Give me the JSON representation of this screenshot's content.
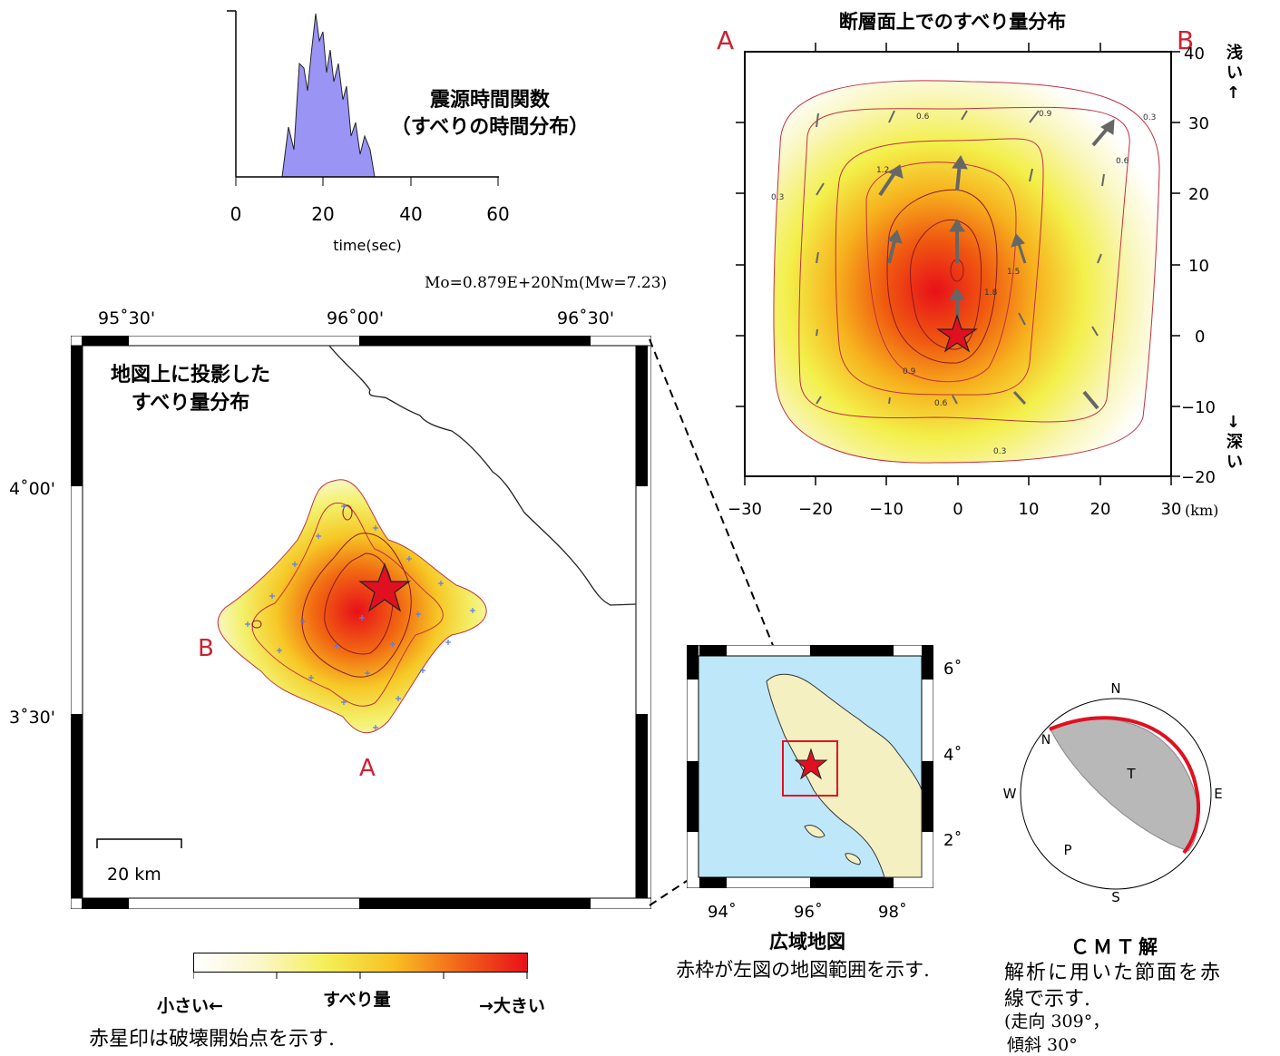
{
  "stf": {
    "title_line1": "震源時間関数",
    "title_line2": "（すべりの時間分布）",
    "xlabel": "time(sec)",
    "xticks": [
      "0",
      "20",
      "40",
      "60"
    ],
    "fill_color": "#9a94f4"
  },
  "moment": "Mo=0.879E+20Nm(Mw=7.23)",
  "fault": {
    "title": "断層面上でのすべり量分布",
    "label_a": "A",
    "label_b": "B",
    "shallow": "浅い↑",
    "deep": "↓深い",
    "km_unit": "(km)",
    "xticks": [
      "−30",
      "−20",
      "−10",
      "0",
      "10",
      "20",
      "30"
    ],
    "yticks": [
      "40",
      "30",
      "20",
      "10",
      "0",
      "−10",
      "−20"
    ],
    "contour_labels": [
      "0.3",
      "0.6",
      "0.9",
      "1.2",
      "1.5",
      "1.8"
    ]
  },
  "map": {
    "title_line1": "地図上に投影した",
    "title_line2": "すべり量分布",
    "lon_ticks": [
      "95˚30'",
      "96˚00'",
      "96˚30'"
    ],
    "lat_ticks": [
      "4˚00'",
      "3˚30'"
    ],
    "label_a": "A",
    "label_b": "B",
    "scale_label": "20 km"
  },
  "regional": {
    "title": "広域地図",
    "caption": "赤枠が左図の地図範囲を示す.",
    "lon_ticks": [
      "94˚",
      "96˚",
      "98˚"
    ],
    "lat_ticks": [
      "6˚",
      "4˚",
      "2˚"
    ]
  },
  "colorbar": {
    "label": "すべり量",
    "small": "小さい←",
    "large": "→大きい"
  },
  "star_note": "赤星印は破壊開始点を示す.",
  "cmt": {
    "title": "ＣＭＴ解",
    "n": "N",
    "s": "S",
    "e": "E",
    "w": "W",
    "t": "T",
    "p": "P",
    "caption_line1": "解析に用いた節面を赤",
    "caption_line2": "線で示す.",
    "caption_line3": "(走向 309°，",
    "caption_line4": "傾斜 30°"
  }
}
